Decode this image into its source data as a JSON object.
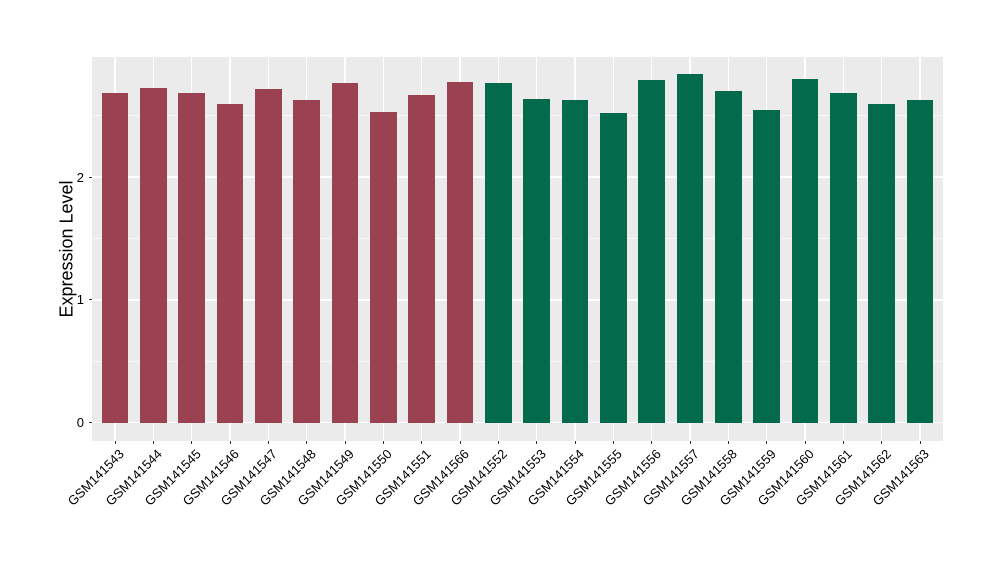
{
  "figure": {
    "ylabel": "Expression Level"
  },
  "chart_data": {
    "type": "bar",
    "title": "",
    "xlabel": "",
    "ylabel": "Expression Level",
    "categories": [
      "GSM141543",
      "GSM141544",
      "GSM141545",
      "GSM141546",
      "GSM141547",
      "GSM141548",
      "GSM141549",
      "GSM141550",
      "GSM141551",
      "GSM141566",
      "GSM141552",
      "GSM141553",
      "GSM141554",
      "GSM141555",
      "GSM141556",
      "GSM141557",
      "GSM141558",
      "GSM141559",
      "GSM141560",
      "GSM141561",
      "GSM141562",
      "GSM141563"
    ],
    "values": [
      2.69,
      2.73,
      2.69,
      2.6,
      2.72,
      2.63,
      2.77,
      2.53,
      2.67,
      2.78,
      2.77,
      2.64,
      2.63,
      2.52,
      2.79,
      2.84,
      2.7,
      2.55,
      2.8,
      2.69,
      2.6,
      2.63
    ],
    "bar_groups": [
      "A",
      "A",
      "A",
      "A",
      "A",
      "A",
      "A",
      "A",
      "A",
      "A",
      "B",
      "B",
      "B",
      "B",
      "B",
      "B",
      "B",
      "B",
      "B",
      "B",
      "B",
      "B"
    ],
    "group_colors": {
      "A": "#9A4251",
      "B": "#046A4C"
    },
    "yticks": [
      0,
      1,
      2
    ],
    "ytick_labels": [
      "0",
      "1",
      "2"
    ],
    "minor_yticks": [
      0.5,
      1.5,
      2.5
    ],
    "ylim": [
      -0.15,
      2.98
    ],
    "grid": true,
    "legend_position": "none",
    "panel_bg": "#EBEBEB",
    "grid_color": "#FFFFFF",
    "tick_color": "#333333",
    "text_color": "#000000",
    "bar_width_frac": 0.7,
    "x_tick_angle_deg": 45
  }
}
